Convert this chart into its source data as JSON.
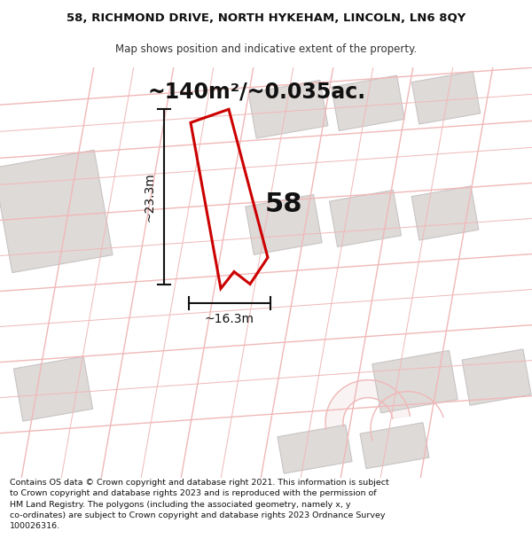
{
  "title_line1": "58, RICHMOND DRIVE, NORTH HYKEHAM, LINCOLN, LN6 8QY",
  "title_line2": "Map shows position and indicative extent of the property.",
  "area_label": "~140m²/~0.035ac.",
  "number_label": "58",
  "dim_height": "~23.3m",
  "dim_width": "~16.3m",
  "footer_text": "Contains OS data © Crown copyright and database right 2021. This information is subject\nto Crown copyright and database rights 2023 and is reproduced with the permission of\nHM Land Registry. The polygons (including the associated geometry, namely x, y\nco-ordinates) are subject to Crown copyright and database rights 2023 Ordnance Survey\n100026316.",
  "bg_color": "#ffffff",
  "map_bg": "#f7f5f5",
  "plot_outline_color": "#cc0000",
  "road_line_color": "#f0b8b8",
  "road_fill_color": "#f5e8e8",
  "building_color": "#dedad8",
  "building_outline": "#c8c4c4",
  "dim_line_color": "#111111",
  "title_fontsize": 9.5,
  "subtitle_fontsize": 8.5,
  "area_fontsize": 17,
  "number_fontsize": 22,
  "dim_fontsize": 10,
  "footer_fontsize": 6.8
}
